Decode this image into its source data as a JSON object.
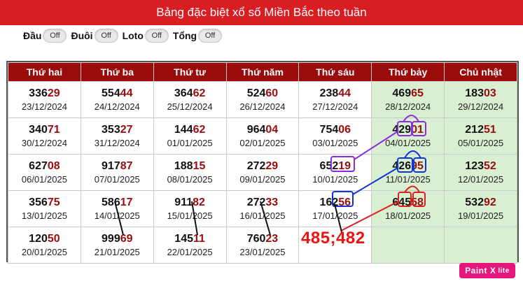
{
  "header": {
    "title": "Bảng đặc biệt xổ số Miền Bắc theo tuần"
  },
  "toggles": [
    {
      "label": "Đầu",
      "state": "Off"
    },
    {
      "label": "Đuôi",
      "state": "Off"
    },
    {
      "label": "Loto",
      "state": "Off"
    },
    {
      "label": "Tổng",
      "state": "Off"
    }
  ],
  "table": {
    "headers": [
      "Thứ hai",
      "Thứ ba",
      "Thứ tư",
      "Thứ năm",
      "Thứ sáu",
      "Thứ bảy",
      "Chủ nhật"
    ],
    "rows": [
      [
        {
          "head": "336",
          "tail": "29",
          "date": "23/12/2024"
        },
        {
          "head": "554",
          "tail": "44",
          "date": "24/12/2024"
        },
        {
          "head": "364",
          "tail": "62",
          "date": "25/12/2024"
        },
        {
          "head": "524",
          "tail": "60",
          "date": "26/12/2024"
        },
        {
          "head": "238",
          "tail": "44",
          "date": "27/12/2024"
        },
        {
          "head": "469",
          "tail": "65",
          "date": "28/12/2024"
        },
        {
          "head": "183",
          "tail": "03",
          "date": "29/12/2024"
        }
      ],
      [
        {
          "head": "340",
          "tail": "71",
          "date": "30/12/2024"
        },
        {
          "head": "353",
          "tail": "27",
          "date": "31/12/2024"
        },
        {
          "head": "144",
          "tail": "62",
          "date": "01/01/2025"
        },
        {
          "head": "964",
          "tail": "04",
          "date": "02/01/2025"
        },
        {
          "head": "754",
          "tail": "06",
          "date": "03/01/2025"
        },
        {
          "head": "429",
          "tail": "01",
          "date": "04/01/2025"
        },
        {
          "head": "212",
          "tail": "51",
          "date": "05/01/2025"
        }
      ],
      [
        {
          "head": "627",
          "tail": "08",
          "date": "06/01/2025"
        },
        {
          "head": "917",
          "tail": "87",
          "date": "07/01/2025"
        },
        {
          "head": "188",
          "tail": "15",
          "date": "08/01/2025"
        },
        {
          "head": "272",
          "tail": "29",
          "date": "09/01/2025"
        },
        {
          "head": "652",
          "tail": "19",
          "date": "10/01/2025"
        },
        {
          "head": "426",
          "tail": "95",
          "date": "11/01/2025"
        },
        {
          "head": "123",
          "tail": "52",
          "date": "12/01/2025"
        }
      ],
      [
        {
          "head": "356",
          "tail": "75",
          "date": "13/01/2025"
        },
        {
          "head": "586",
          "tail": "17",
          "date": "14/01/2025"
        },
        {
          "head": "911",
          "tail": "82",
          "date": "15/01/2025"
        },
        {
          "head": "272",
          "tail": "33",
          "date": "16/01/2025"
        },
        {
          "head": "162",
          "tail": "56",
          "date": "17/01/2025"
        },
        {
          "head": "645",
          "tail": "58",
          "date": "18/01/2025"
        },
        {
          "head": "532",
          "tail": "92",
          "date": "19/01/2025"
        }
      ],
      [
        {
          "head": "120",
          "tail": "50",
          "date": "20/01/2025"
        },
        {
          "head": "999",
          "tail": "69",
          "date": "21/01/2025"
        },
        {
          "head": "145",
          "tail": "11",
          "date": "22/01/2025"
        },
        {
          "head": "760",
          "tail": "23",
          "date": "23/01/2025"
        },
        {
          "head": "",
          "tail": "",
          "date": ""
        },
        {
          "head": "",
          "tail": "",
          "date": ""
        },
        {
          "head": "",
          "tail": "",
          "date": ""
        }
      ]
    ]
  },
  "annotation": {
    "text": "485;482"
  },
  "badge": {
    "name": "Paint X",
    "suffix": "lite"
  },
  "colors": {
    "title_bg": "#d81e22",
    "header_bg": "#9c0b0b",
    "tail_color": "#9b0d0d",
    "weekend_bg": "#d9efd2",
    "badge_bg": "#e6167e"
  }
}
